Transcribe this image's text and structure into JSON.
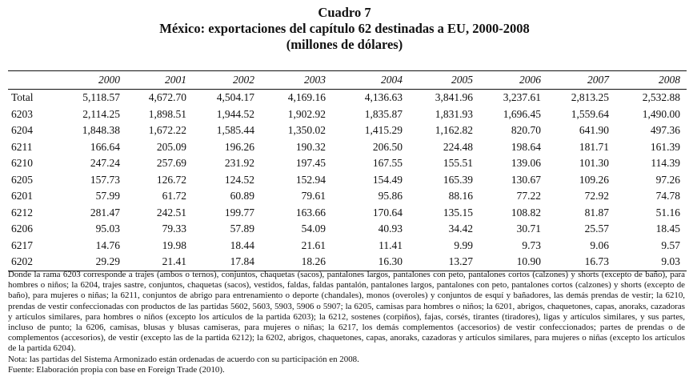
{
  "heading": {
    "line1": "Cuadro 7",
    "line2": "México: exportaciones del capítulo 62 destinadas a EU, 2000-2008",
    "line3": "(millones de dólares)"
  },
  "table": {
    "corner": "",
    "years": [
      "2000",
      "2001",
      "2002",
      "2003",
      "2004",
      "2005",
      "2006",
      "2007",
      "2008"
    ],
    "rows": [
      {
        "label": "Total",
        "values": [
          "5,118.57",
          "4,672.70",
          "4,504.17",
          "4,169.16",
          "4,136.63",
          "3,841.96",
          "3,237.61",
          "2,813.25",
          "2,532.88"
        ]
      },
      {
        "label": "6203",
        "values": [
          "2,114.25",
          "1,898.51",
          "1,944.52",
          "1,902.92",
          "1,835.87",
          "1,831.93",
          "1,696.45",
          "1,559.64",
          "1,490.00"
        ]
      },
      {
        "label": "6204",
        "values": [
          "1,848.38",
          "1,672.22",
          "1,585.44",
          "1,350.02",
          "1,415.29",
          "1,162.82",
          "820.70",
          "641.90",
          "497.36"
        ]
      },
      {
        "label": "6211",
        "values": [
          "166.64",
          "205.09",
          "196.26",
          "190.32",
          "206.50",
          "224.48",
          "198.64",
          "181.71",
          "161.39"
        ]
      },
      {
        "label": "6210",
        "values": [
          "247.24",
          "257.69",
          "231.92",
          "197.45",
          "167.55",
          "155.51",
          "139.06",
          "101.30",
          "114.39"
        ]
      },
      {
        "label": "6205",
        "values": [
          "157.73",
          "126.72",
          "124.52",
          "152.94",
          "154.49",
          "165.39",
          "130.67",
          "109.26",
          "97.26"
        ]
      },
      {
        "label": "6201",
        "values": [
          "57.99",
          "61.72",
          "60.89",
          "79.61",
          "95.86",
          "88.16",
          "77.22",
          "72.92",
          "74.78"
        ]
      },
      {
        "label": "6212",
        "values": [
          "281.47",
          "242.51",
          "199.77",
          "163.66",
          "170.64",
          "135.15",
          "108.82",
          "81.87",
          "51.16"
        ]
      },
      {
        "label": "6206",
        "values": [
          "95.03",
          "79.33",
          "57.89",
          "54.09",
          "40.93",
          "34.42",
          "30.71",
          "25.57",
          "18.45"
        ]
      },
      {
        "label": "6217",
        "values": [
          "14.76",
          "19.98",
          "18.44",
          "21.61",
          "11.41",
          "9.99",
          "9.73",
          "9.06",
          "9.57"
        ]
      },
      {
        "label": "6202",
        "values": [
          "29.29",
          "21.41",
          "17.84",
          "18.26",
          "16.30",
          "13.27",
          "10.90",
          "16.73",
          "9.03"
        ]
      }
    ]
  },
  "notes": {
    "description": "Donde la rama 6203 corresponde a trajes (ambos o ternos), conjuntos, chaquetas (sacos), pantalones largos, pantalones con peto, pantalones cortos (calzones) y shorts (excepto de baño), para hombres o niños; la 6204, trajes sastre, conjuntos, chaquetas (sacos), vestidos, faldas, faldas pantalón, pantalones largos, pantalones con peto, pantalones cortos (calzones) y shorts (excepto de baño), para mujeres o niñas; la 6211, conjuntos de abrigo para entrenamiento o deporte (chandales), monos (overoles) y conjuntos de esquí y bañadores, las demás prendas de vestir; la 6210, prendas de vestir confeccionadas con productos de las partidas 5602, 5603, 5903, 5906 o 5907; la 6205, camisas para hombres o niños; la 6201, abrigos, chaquetones, capas, anoraks, cazadoras y artículos similares, para hombres o niños (excepto los artículos de la partida 6203); la 6212, sostenes (corpiños), fajas, corsés, tirantes (tiradores), ligas y artículos similares, y sus partes, incluso de punto; la 6206, camisas, blusas y blusas camiseras, para mujeres o niñas; la 6217, los demás complementos (accesorios) de vestir confeccionados; partes de prendas o de complementos (accesorios), de vestir (excepto las de la partida 6212); la 6202, abrigos, chaquetones, capas, anoraks, cazadoras y artículos similares, para mujeres o niñas (excepto los artículos de la partida 6204).",
    "nota": "Nota: las partidas del Sistema Armonizado están ordenadas de acuerdo con su participación en 2008.",
    "fuente": "Fuente: Elaboración propia con base en Foreign Trade (2010)."
  }
}
